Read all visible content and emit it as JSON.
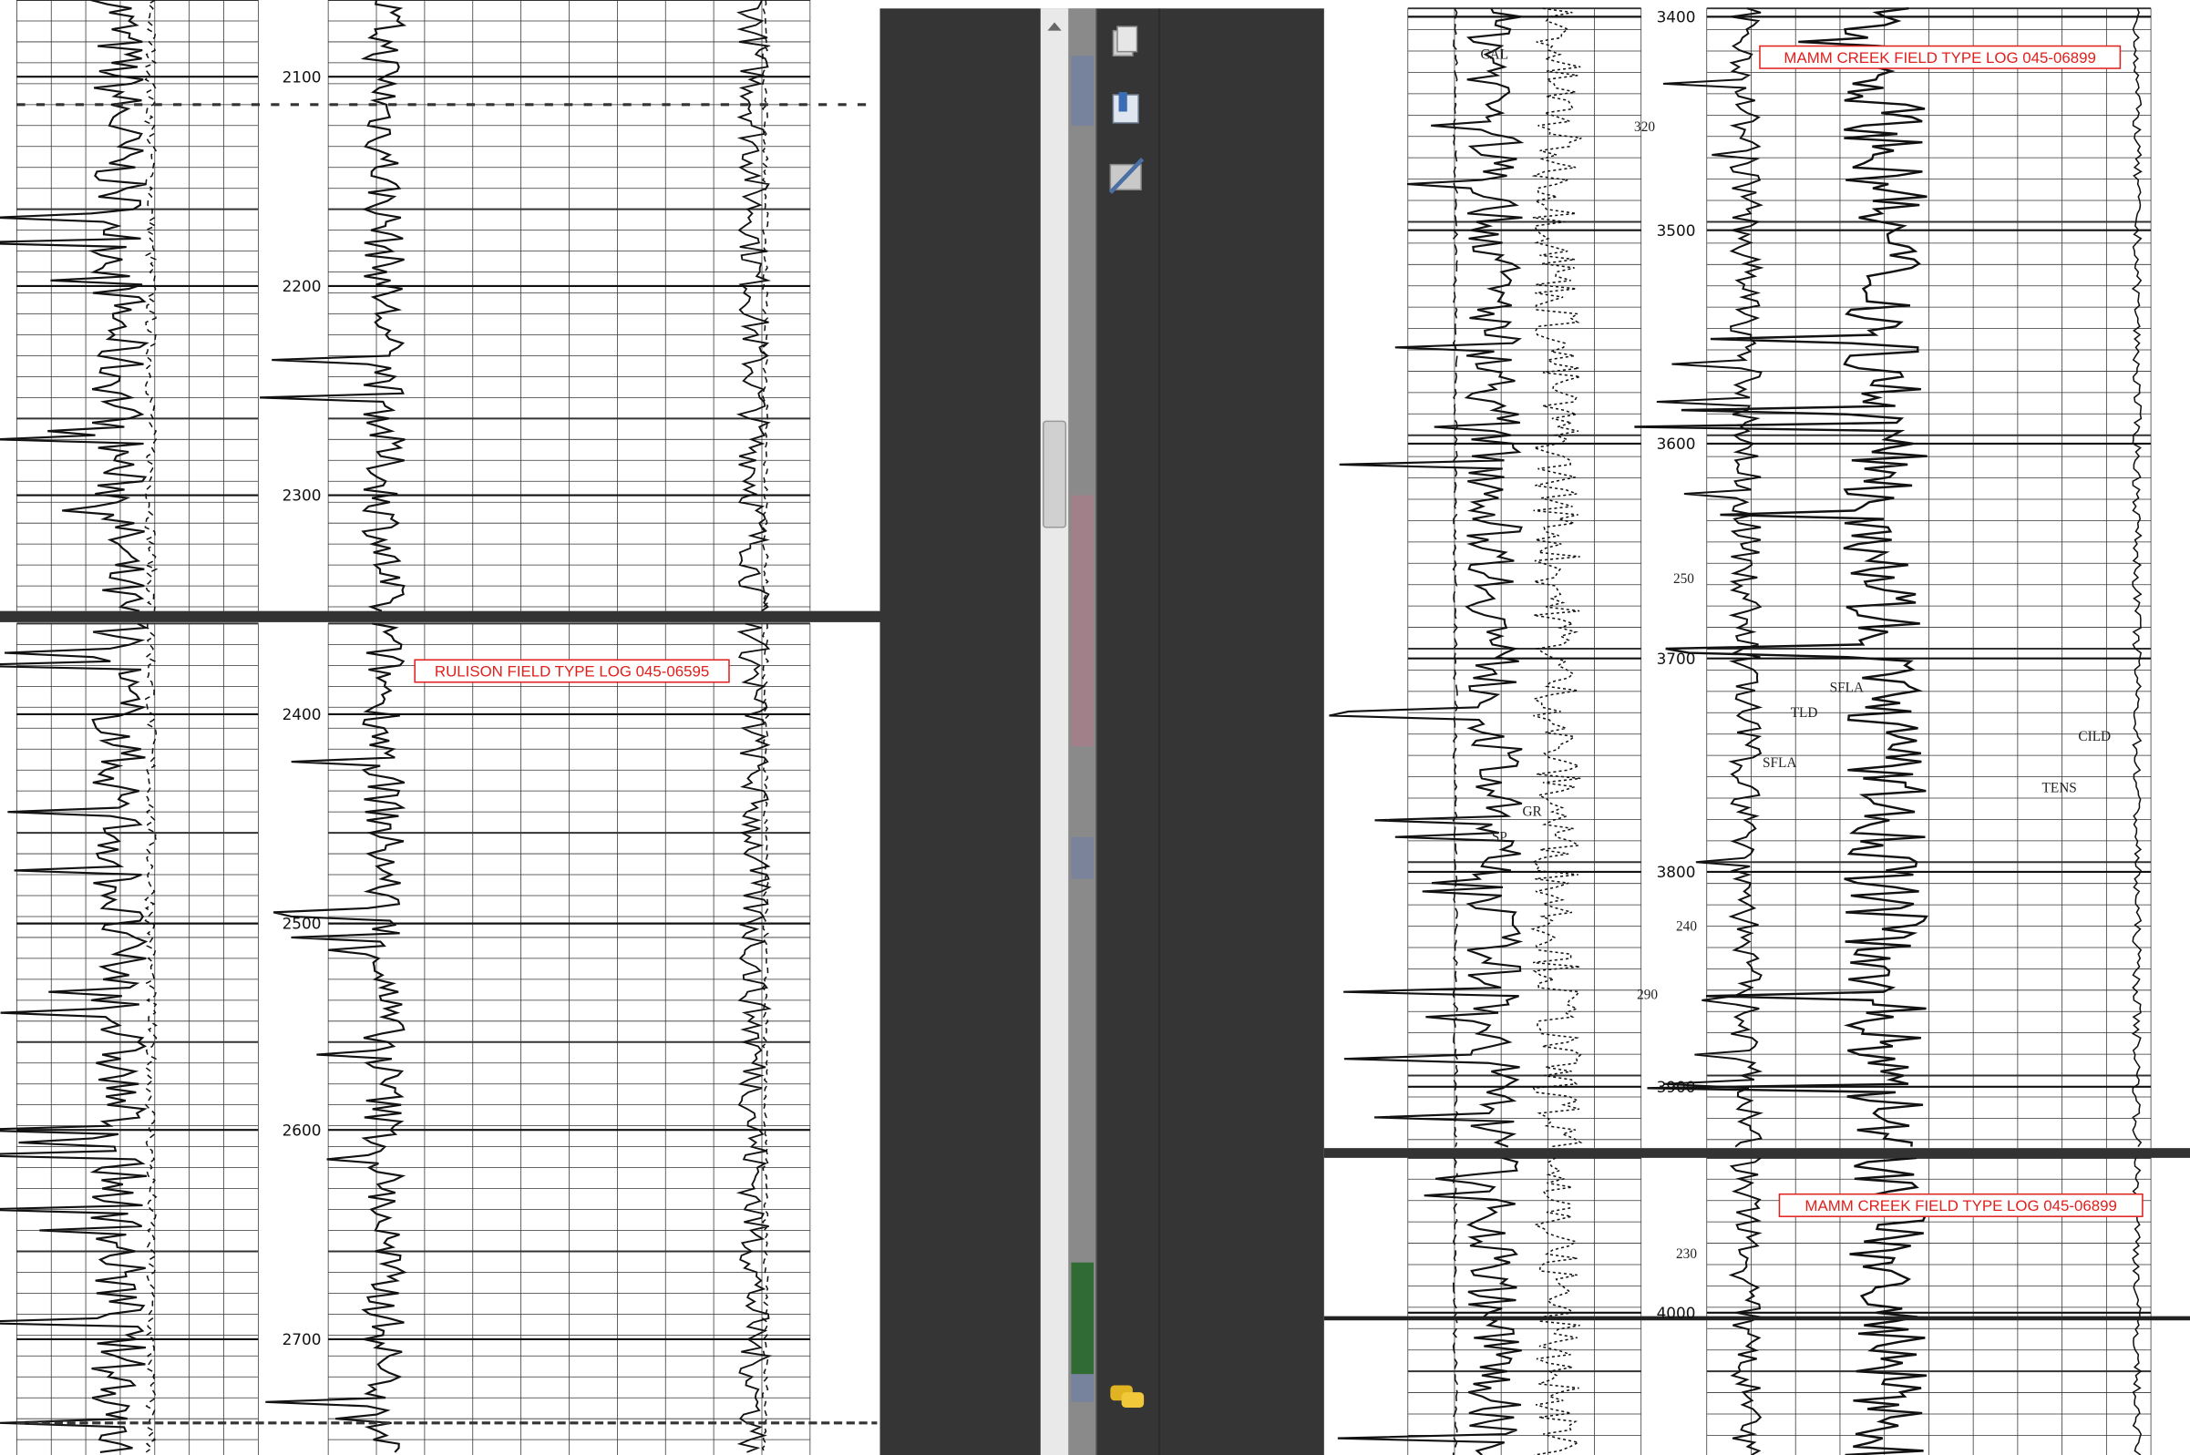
{
  "left_log": {
    "depths": [
      "2100",
      "2200",
      "2300",
      "2400",
      "2500",
      "2600",
      "2700"
    ],
    "annotation": "RULISON FIELD TYPE LOG 045-06595"
  },
  "right_log": {
    "depths": [
      "3400",
      "3500",
      "3600",
      "3700",
      "3800",
      "3900",
      "4000"
    ],
    "annotations": [
      "MAMM CREEK FIELD TYPE LOG 045-06899",
      "MAMM CREEK FIELD TYPE LOG 045-06899"
    ],
    "curve_labels": [
      "CAL",
      "GR",
      "SP",
      "TLD",
      "SFLA",
      "SFLA",
      "CILD",
      "TENS"
    ],
    "scale_marks": [
      "320",
      "250",
      "240",
      "290",
      "230"
    ]
  }
}
